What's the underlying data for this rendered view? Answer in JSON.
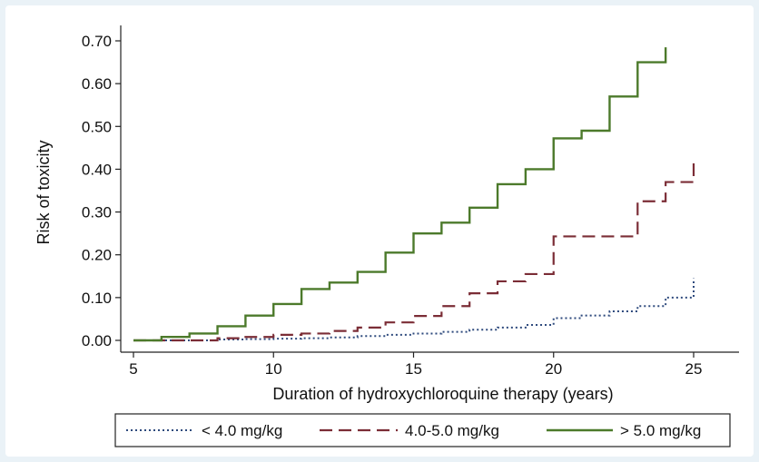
{
  "chart_data": {
    "type": "line",
    "xlabel": "Duration of hydroxychloroquine therapy (years)",
    "ylabel": "Risk of toxicity",
    "xlim": [
      5,
      25
    ],
    "ylim": [
      0,
      0.7
    ],
    "x_ticks": [
      "5",
      "10",
      "15",
      "20",
      "25"
    ],
    "y_ticks": [
      "0.00",
      "0.10",
      "0.20",
      "0.30",
      "0.40",
      "0.50",
      "0.60",
      "0.70"
    ],
    "grid": false,
    "legend_position": "bottom",
    "series": [
      {
        "name": "< 4.0 mg/kg",
        "style": "dotted",
        "color": "#2e4a7d",
        "points": [
          [
            5,
            0.0
          ],
          [
            6,
            0.0
          ],
          [
            7,
            0.0
          ],
          [
            8,
            0.002
          ],
          [
            9,
            0.003
          ],
          [
            10,
            0.004
          ],
          [
            11,
            0.005
          ],
          [
            12,
            0.007
          ],
          [
            13,
            0.01
          ],
          [
            14,
            0.013
          ],
          [
            15,
            0.016
          ],
          [
            16,
            0.02
          ],
          [
            17,
            0.025
          ],
          [
            18,
            0.03
          ],
          [
            19,
            0.036
          ],
          [
            20,
            0.052
          ],
          [
            21,
            0.058
          ],
          [
            22,
            0.068
          ],
          [
            23,
            0.08
          ],
          [
            24,
            0.1
          ],
          [
            25,
            0.1
          ],
          [
            25,
            0.145
          ]
        ]
      },
      {
        "name": "4.0-5.0 mg/kg",
        "style": "dashed",
        "color": "#7b2d36",
        "points": [
          [
            5,
            0.0
          ],
          [
            6,
            0.0
          ],
          [
            7,
            0.0
          ],
          [
            8,
            0.005
          ],
          [
            9,
            0.008
          ],
          [
            10,
            0.013
          ],
          [
            11,
            0.016
          ],
          [
            12,
            0.022
          ],
          [
            13,
            0.03
          ],
          [
            14,
            0.042
          ],
          [
            15,
            0.057
          ],
          [
            16,
            0.08
          ],
          [
            17,
            0.11
          ],
          [
            18,
            0.138
          ],
          [
            19,
            0.155
          ],
          [
            20,
            0.177
          ],
          [
            20,
            0.243
          ],
          [
            23,
            0.243
          ],
          [
            23,
            0.325
          ],
          [
            24,
            0.37
          ],
          [
            25,
            0.37
          ],
          [
            25,
            0.425
          ]
        ]
      },
      {
        "name": "> 5.0 mg/kg",
        "style": "solid",
        "color": "#4c7a2b",
        "points": [
          [
            5,
            0.0
          ],
          [
            6,
            0.008
          ],
          [
            7,
            0.016
          ],
          [
            8,
            0.033
          ],
          [
            9,
            0.058
          ],
          [
            10,
            0.085
          ],
          [
            11,
            0.12
          ],
          [
            12,
            0.135
          ],
          [
            13,
            0.16
          ],
          [
            14,
            0.205
          ],
          [
            15,
            0.25
          ],
          [
            16,
            0.275
          ],
          [
            17,
            0.31
          ],
          [
            18,
            0.365
          ],
          [
            19,
            0.4
          ],
          [
            20,
            0.472
          ],
          [
            21,
            0.49
          ],
          [
            22,
            0.57
          ],
          [
            23,
            0.65
          ],
          [
            24,
            0.65
          ],
          [
            24,
            0.685
          ]
        ]
      }
    ]
  }
}
